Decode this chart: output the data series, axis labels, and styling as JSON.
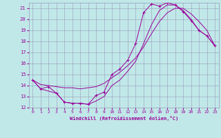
{
  "xlabel": "Windchill (Refroidissement éolien,°C)",
  "bg_color": "#c0e8e8",
  "line_color": "#990099",
  "grid_color": "#9999bb",
  "xlim": [
    -0.5,
    23.5
  ],
  "ylim": [
    12,
    21.5
  ],
  "yticks": [
    12,
    13,
    14,
    15,
    16,
    17,
    18,
    19,
    20,
    21
  ],
  "xticks": [
    0,
    1,
    2,
    3,
    4,
    5,
    6,
    7,
    8,
    9,
    10,
    11,
    12,
    13,
    14,
    15,
    16,
    17,
    18,
    19,
    20,
    21,
    22,
    23
  ],
  "line1_x": [
    0,
    1,
    2,
    3,
    4,
    5,
    6,
    7,
    8,
    9,
    10,
    11,
    12,
    13,
    14,
    15,
    16,
    17,
    18,
    19,
    20,
    21,
    22,
    23
  ],
  "line1_y": [
    14.5,
    13.7,
    13.9,
    13.3,
    12.5,
    12.4,
    12.4,
    12.3,
    13.1,
    13.4,
    15.0,
    15.5,
    16.3,
    17.8,
    20.6,
    21.4,
    21.2,
    21.5,
    21.3,
    20.7,
    19.9,
    19.0,
    18.5,
    17.6
  ],
  "line2_x": [
    0,
    1,
    2,
    3,
    4,
    5,
    6,
    7,
    8,
    9,
    10,
    11,
    12,
    13,
    14,
    15,
    16,
    17,
    18,
    19,
    20,
    21,
    22,
    23
  ],
  "line2_y": [
    14.5,
    14.1,
    14.0,
    13.9,
    13.8,
    13.8,
    13.7,
    13.8,
    13.9,
    14.2,
    14.7,
    15.2,
    15.8,
    16.5,
    17.5,
    18.7,
    19.8,
    20.6,
    21.0,
    21.0,
    20.5,
    19.8,
    19.0,
    17.6
  ],
  "line3_x": [
    0,
    1,
    2,
    3,
    4,
    5,
    6,
    7,
    8,
    9,
    10,
    11,
    12,
    13,
    14,
    15,
    16,
    17,
    18,
    19,
    20,
    21,
    22,
    23
  ],
  "line3_y": [
    14.5,
    13.7,
    13.5,
    13.3,
    12.5,
    12.4,
    12.4,
    12.3,
    12.6,
    13.0,
    14.0,
    14.5,
    15.3,
    16.2,
    17.8,
    19.5,
    20.8,
    21.3,
    21.3,
    20.8,
    20.0,
    19.0,
    18.5,
    17.6
  ]
}
